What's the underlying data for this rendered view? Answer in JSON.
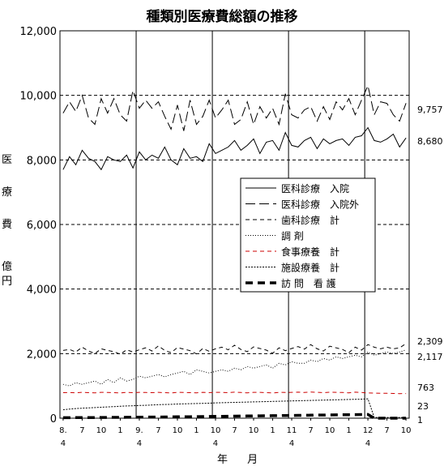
{
  "chart_data": {
    "type": "line",
    "title": "種類別医療費総額の推移",
    "ylabel_chars": [
      "医",
      "療",
      "費",
      "億",
      "円"
    ],
    "xlabel": "年 月",
    "ylim": [
      0,
      12000
    ],
    "yticks": [
      "0",
      "2,000",
      "4,000",
      "6,000",
      "8,000",
      "10,000",
      "12,000"
    ],
    "grid": "dashed horizontal",
    "legend_position": "center-right",
    "x_tick_labels": [
      {
        "idx": 0,
        "top": "8.",
        "bottom": "4"
      },
      {
        "idx": 3,
        "top": "7",
        "bottom": ""
      },
      {
        "idx": 6,
        "top": "10",
        "bottom": ""
      },
      {
        "idx": 9,
        "top": "1",
        "bottom": ""
      },
      {
        "idx": 12,
        "top": "9.",
        "bottom": "4"
      },
      {
        "idx": 15,
        "top": "7",
        "bottom": ""
      },
      {
        "idx": 18,
        "top": "10",
        "bottom": ""
      },
      {
        "idx": 21,
        "top": "1",
        "bottom": ""
      },
      {
        "idx": 24,
        "top": "10",
        "bottom": "4"
      },
      {
        "idx": 27,
        "top": "7",
        "bottom": ""
      },
      {
        "idx": 30,
        "top": "10",
        "bottom": ""
      },
      {
        "idx": 33,
        "top": "1",
        "bottom": ""
      },
      {
        "idx": 36,
        "top": "11",
        "bottom": "4"
      },
      {
        "idx": 39,
        "top": "7",
        "bottom": ""
      },
      {
        "idx": 42,
        "top": "10",
        "bottom": ""
      },
      {
        "idx": 45,
        "top": "1",
        "bottom": ""
      },
      {
        "idx": 48,
        "top": "12",
        "bottom": "4"
      },
      {
        "idx": 51,
        "top": "7",
        "bottom": ""
      },
      {
        "idx": 54,
        "top": "10",
        "bottom": ""
      }
    ],
    "fiscal_year_boundaries": [
      12,
      24,
      36,
      48
    ],
    "num_months": 55,
    "end_labels": [
      "9,757",
      "8,680",
      "2,309",
      "2,117",
      "763",
      "23",
      "1"
    ],
    "series": [
      {
        "name": "医科診療　入院",
        "style": "solid",
        "color": "#000000",
        "values": [
          7700,
          8100,
          7850,
          8300,
          8050,
          7950,
          7700,
          8100,
          8000,
          7950,
          8150,
          7750,
          8250,
          8000,
          8150,
          8050,
          8400,
          8000,
          7850,
          8350,
          8050,
          8100,
          7950,
          8500,
          8200,
          8300,
          8400,
          8600,
          8300,
          8450,
          8650,
          8200,
          8550,
          8600,
          8300,
          8850,
          8450,
          8400,
          8600,
          8700,
          8350,
          8650,
          8500,
          8600,
          8650,
          8450,
          8700,
          8750,
          9000,
          8600,
          8550,
          8650,
          8800,
          8400,
          8680
        ]
      },
      {
        "name": "医科診療　入院外",
        "style": "longdash",
        "color": "#000000",
        "values": [
          9450,
          9800,
          9500,
          10000,
          9300,
          9100,
          9900,
          9450,
          9900,
          9400,
          9200,
          10150,
          9600,
          9850,
          9600,
          9800,
          9350,
          8950,
          9700,
          8900,
          9850,
          9100,
          9350,
          9850,
          9300,
          9550,
          9850,
          9100,
          9250,
          9800,
          9100,
          9650,
          9300,
          9600,
          9100,
          10050,
          9400,
          9300,
          9550,
          9650,
          9200,
          9650,
          9250,
          9800,
          9550,
          9900,
          9400,
          9850,
          10300,
          9400,
          9800,
          9750,
          9400,
          9200,
          9757
        ]
      },
      {
        "name": "歯科診療　計",
        "style": "dash",
        "color": "#000000",
        "values": [
          2100,
          2130,
          2050,
          2200,
          2080,
          2000,
          2150,
          2100,
          2060,
          1980,
          2120,
          2050,
          2120,
          2180,
          2080,
          2240,
          2100,
          2030,
          2190,
          2140,
          2090,
          1990,
          2160,
          2070,
          2150,
          2200,
          2120,
          2260,
          2130,
          2060,
          2210,
          2160,
          2110,
          2010,
          2180,
          2090,
          2160,
          2220,
          2140,
          2280,
          2150,
          2080,
          2230,
          2180,
          2130,
          2030,
          2200,
          2110,
          2280,
          2200,
          2150,
          2200,
          2150,
          2180,
          2309
        ]
      },
      {
        "name": "調 剤",
        "style": "dot",
        "color": "#000000",
        "values": [
          1050,
          1000,
          1100,
          1050,
          1100,
          1150,
          1050,
          1200,
          1100,
          1250,
          1150,
          1200,
          1300,
          1250,
          1300,
          1350,
          1280,
          1350,
          1400,
          1450,
          1350,
          1500,
          1450,
          1400,
          1450,
          1500,
          1450,
          1550,
          1500,
          1600,
          1550,
          1600,
          1650,
          1550,
          1700,
          1650,
          1750,
          1700,
          1700,
          1800,
          1750,
          1850,
          1800,
          1900,
          1850,
          1900,
          1950,
          1900,
          2050,
          1950,
          2000,
          2050,
          2000,
          2050,
          2117
        ]
      },
      {
        "name": "食事療養　計",
        "style": "dash",
        "color": "#cc0000",
        "values": [
          790,
          795,
          785,
          800,
          790,
          785,
          800,
          795,
          790,
          780,
          800,
          790,
          800,
          795,
          790,
          800,
          790,
          780,
          800,
          795,
          790,
          785,
          800,
          790,
          800,
          800,
          790,
          805,
          795,
          785,
          800,
          800,
          790,
          780,
          800,
          795,
          800,
          805,
          795,
          810,
          800,
          790,
          805,
          800,
          795,
          785,
          805,
          795,
          780,
          775,
          770,
          770,
          765,
          760,
          763
        ]
      },
      {
        "name": "施設療養　計",
        "style": "finedot",
        "color": "#000000",
        "values": [
          260,
          280,
          300,
          310,
          320,
          330,
          340,
          350,
          360,
          370,
          380,
          385,
          395,
          400,
          410,
          420,
          425,
          430,
          440,
          445,
          450,
          455,
          460,
          465,
          475,
          480,
          485,
          490,
          495,
          500,
          505,
          510,
          515,
          520,
          525,
          530,
          535,
          540,
          545,
          550,
          555,
          560,
          565,
          570,
          575,
          580,
          585,
          590,
          600,
          23,
          23,
          23,
          23,
          23,
          23
        ]
      },
      {
        "name": "訪 問　看 護",
        "style": "thick-dash",
        "color": "#000000",
        "values": [
          15,
          15,
          18,
          18,
          20,
          20,
          22,
          22,
          25,
          25,
          28,
          28,
          30,
          32,
          34,
          36,
          38,
          40,
          42,
          44,
          46,
          48,
          50,
          52,
          55,
          57,
          60,
          62,
          65,
          67,
          70,
          72,
          75,
          77,
          80,
          82,
          85,
          87,
          90,
          92,
          95,
          97,
          100,
          102,
          105,
          107,
          110,
          112,
          115,
          1,
          1,
          1,
          1,
          1,
          1
        ]
      }
    ]
  }
}
